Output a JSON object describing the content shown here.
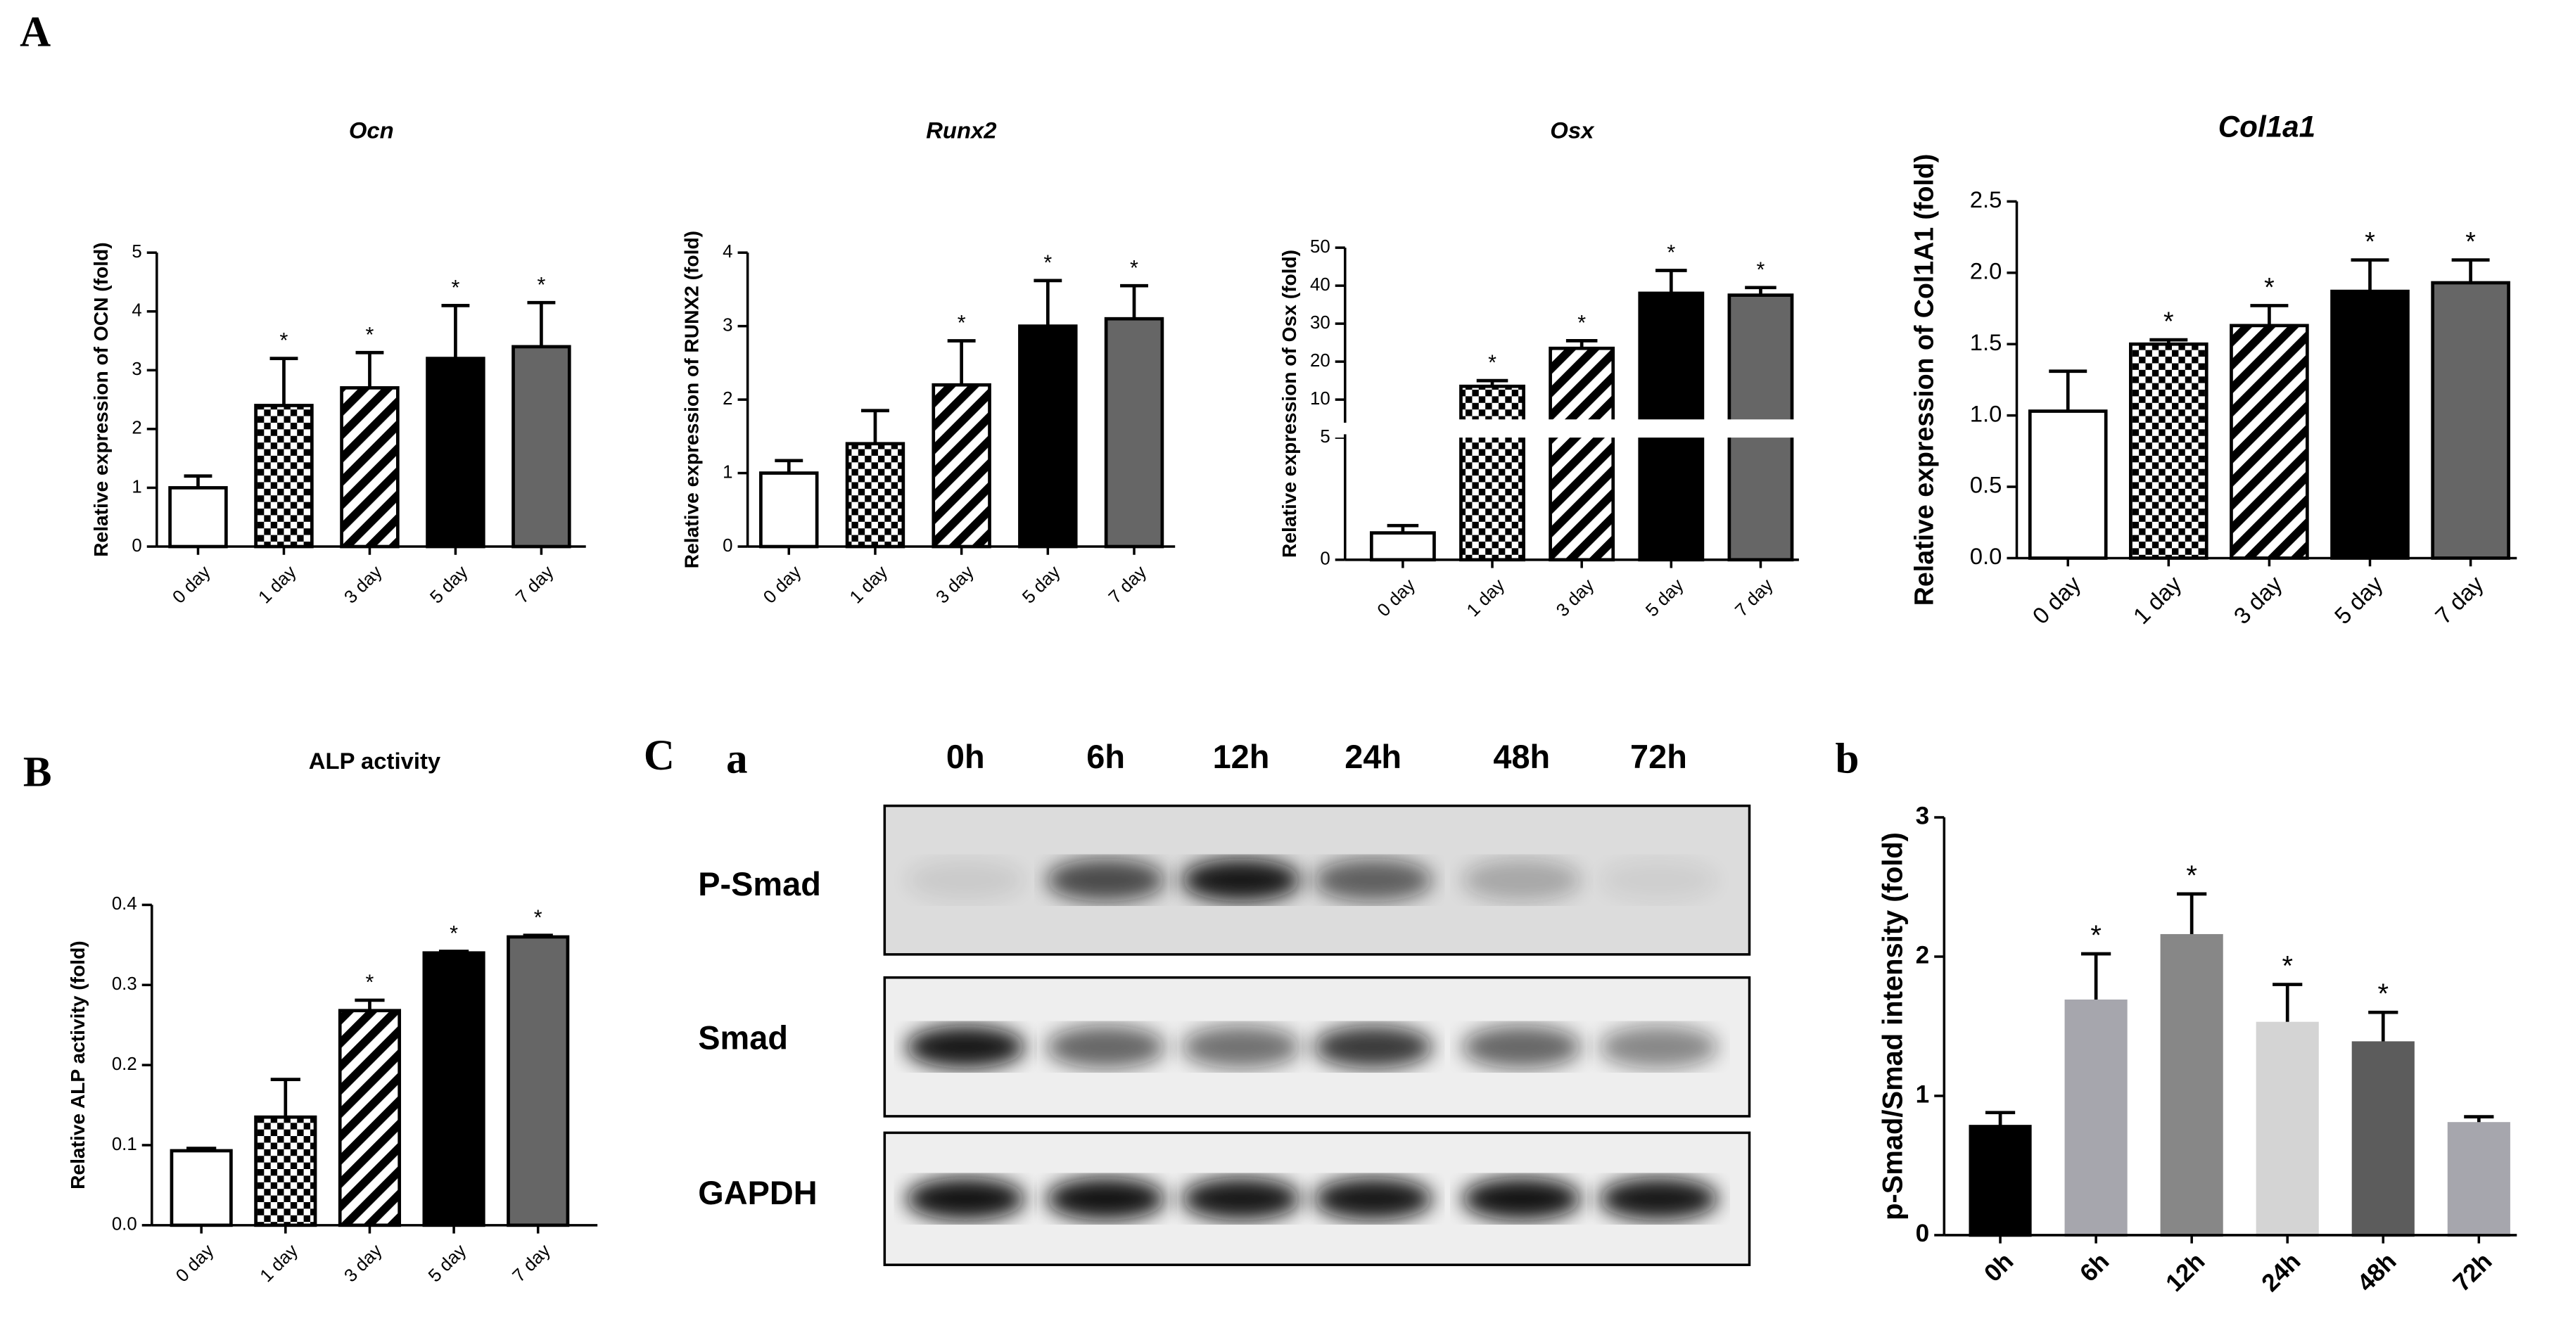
{
  "panel_labels": [
    "A",
    "B",
    "C",
    "a",
    "b"
  ],
  "blot": {
    "lanes": [
      "0h",
      "6h",
      "12h",
      "24h",
      "48h",
      "72h"
    ],
    "rows": [
      "P-Smad",
      "Smad",
      "GAPDH"
    ]
  },
  "chart_data": [
    {
      "type": "bar",
      "title": "Ocn",
      "y_label": "Relative expression of OCN (fold)",
      "categories": [
        "0 day",
        "1 day",
        "3 day",
        "5 day",
        "7 day"
      ],
      "values": [
        1.0,
        2.4,
        2.7,
        3.2,
        3.4
      ],
      "errors": [
        0.2,
        0.8,
        0.6,
        0.9,
        0.75
      ],
      "annotations": [
        null,
        "*",
        "*",
        "*",
        "*"
      ],
      "patterns": [
        "none",
        "checker",
        "hatch",
        "solid",
        "solid"
      ],
      "colors": [
        "#ffffff",
        "#000000",
        "#000000",
        "#000000",
        "#666666"
      ],
      "ylim": [
        0,
        5
      ],
      "yticks": [
        0,
        1,
        2,
        3,
        4,
        5
      ]
    },
    {
      "type": "bar",
      "title": "Runx2",
      "y_label": "Relative expression of RUNX2 (fold)",
      "categories": [
        "0 day",
        "1 day",
        "3 day",
        "5 day",
        "7 day"
      ],
      "values": [
        1.0,
        1.4,
        2.2,
        3.0,
        3.1
      ],
      "errors": [
        0.17,
        0.45,
        0.6,
        0.62,
        0.45
      ],
      "annotations": [
        null,
        null,
        "*",
        "*",
        "*"
      ],
      "patterns": [
        "none",
        "checker",
        "hatch",
        "solid",
        "solid"
      ],
      "colors": [
        "#ffffff",
        "#000000",
        "#000000",
        "#000000",
        "#666666"
      ],
      "ylim": [
        0,
        4
      ],
      "yticks": [
        0,
        1,
        2,
        3,
        4
      ]
    },
    {
      "type": "bar",
      "title": "Osx",
      "y_label": "Relative expression of Osx (fold)",
      "categories": [
        "0 day",
        "1 day",
        "3 day",
        "5 day",
        "7 day"
      ],
      "values": [
        1.1,
        13.5,
        23.5,
        38,
        37.5
      ],
      "errors": [
        0.3,
        1.5,
        2,
        6,
        2
      ],
      "annotations": [
        null,
        "*",
        "*",
        "*",
        "*"
      ],
      "patterns": [
        "none",
        "checker",
        "hatch",
        "solid",
        "solid"
      ],
      "colors": [
        "#ffffff",
        "#000000",
        "#000000",
        "#000000",
        "#666666"
      ],
      "ylim": [
        0,
        50
      ],
      "ybreak": [
        5,
        10
      ],
      "yticks": [
        0,
        5,
        10,
        20,
        30,
        40,
        50
      ]
    },
    {
      "type": "bar",
      "title": "Col1a1",
      "y_label": "Relative expression of Col1A1 (fold)",
      "categories": [
        "0 day",
        "1 day",
        "3 day",
        "5 day",
        "7 day"
      ],
      "values": [
        1.03,
        1.5,
        1.63,
        1.87,
        1.93
      ],
      "errors": [
        0.28,
        0.03,
        0.14,
        0.22,
        0.16
      ],
      "annotations": [
        null,
        "*",
        "*",
        "*",
        "*"
      ],
      "patterns": [
        "none",
        "checker",
        "hatch",
        "solid",
        "solid"
      ],
      "colors": [
        "#ffffff",
        "#000000",
        "#000000",
        "#000000",
        "#666666"
      ],
      "ylim": [
        0,
        2.5
      ],
      "yticks": [
        {
          "value": 0,
          "label": "0.0"
        },
        0.5,
        {
          "value": 1,
          "label": "1.0"
        },
        1.5,
        {
          "value": 2,
          "label": "2.0"
        },
        2.5
      ]
    },
    {
      "type": "bar",
      "title": "ALP activity",
      "y_label": "Relative ALP activity (fold)",
      "categories": [
        "0 day",
        "1 day",
        "3 day",
        "5 day",
        "7 day"
      ],
      "values": [
        0.093,
        0.135,
        0.268,
        0.34,
        0.36
      ],
      "errors": [
        0.003,
        0.047,
        0.013,
        0.002,
        0.002
      ],
      "annotations": [
        null,
        null,
        "*",
        "*",
        "*"
      ],
      "patterns": [
        "none",
        "checker",
        "hatch",
        "solid",
        "solid"
      ],
      "colors": [
        "#ffffff",
        "#000000",
        "#000000",
        "#000000",
        "#666666"
      ],
      "ylim": [
        0,
        0.4
      ],
      "yticks": [
        {
          "value": 0,
          "label": "0.0"
        },
        0.1,
        0.2,
        0.3,
        0.4
      ]
    },
    {
      "type": "bar",
      "y_label": "p-Smad/Smad intensity (fold)",
      "categories": [
        "0h",
        "6h",
        "12h",
        "24h",
        "48h",
        "72h"
      ],
      "values": [
        0.78,
        1.68,
        2.15,
        1.52,
        1.38,
        0.8
      ],
      "errors": [
        0.1,
        0.34,
        0.3,
        0.28,
        0.22,
        0.05
      ],
      "annotations": [
        null,
        "*",
        "*",
        "*",
        "*",
        null
      ],
      "patterns": [
        "solid",
        "solid",
        "solid",
        "solid",
        "solid",
        "solid"
      ],
      "colors": [
        "#000000",
        "#a6a6ad",
        "#878787",
        "#d4d4d4",
        "#5c5c5c",
        "#a6a6ad"
      ],
      "ylim": [
        0,
        3
      ],
      "yticks": [
        0,
        1,
        2,
        3
      ]
    }
  ]
}
